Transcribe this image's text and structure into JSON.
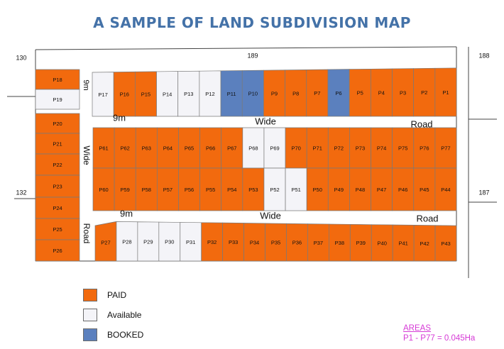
{
  "title": "A SAMPLE OF LAND SUBDIVISION MAP",
  "colors": {
    "paid": "#f26a0e",
    "available": "#f4f4f8",
    "booked": "#5b80be",
    "outline": "#7a7a7a",
    "title": "#4472a8",
    "areas": "#d63ad6"
  },
  "adjacent_parcels": [
    "130",
    "189",
    "188",
    "132",
    "187"
  ],
  "roads": {
    "upper": {
      "width": "9m",
      "word1": "Wide",
      "word2": "Road"
    },
    "lower": {
      "width": "9m",
      "word1": "Wide",
      "word2": "Road"
    },
    "vertical": {
      "width": "9m",
      "word1": "Wide",
      "word2": "Road"
    }
  },
  "plots": {
    "P1": "paid",
    "P2": "paid",
    "P3": "paid",
    "P4": "paid",
    "P5": "paid",
    "P6": "booked",
    "P7": "paid",
    "P8": "paid",
    "P9": "paid",
    "P10": "booked",
    "P11": "booked",
    "P12": "available",
    "P13": "available",
    "P14": "available",
    "P15": "paid",
    "P16": "paid",
    "P17": "available",
    "P18": "paid",
    "P19": "available",
    "P20": "paid",
    "P21": "paid",
    "P22": "paid",
    "P23": "paid",
    "P24": "paid",
    "P25": "paid",
    "P26": "paid",
    "P27": "paid",
    "P28": "available",
    "P29": "available",
    "P30": "available",
    "P31": "available",
    "P32": "paid",
    "P33": "paid",
    "P34": "paid",
    "P35": "paid",
    "P36": "paid",
    "P37": "paid",
    "P38": "paid",
    "P39": "paid",
    "P40": "paid",
    "P41": "paid",
    "P42": "paid",
    "P43": "paid",
    "P44": "paid",
    "P45": "paid",
    "P46": "paid",
    "P47": "paid",
    "P48": "paid",
    "P49": "paid",
    "P50": "paid",
    "P51": "available",
    "P52": "available",
    "P53": "paid",
    "P54": "paid",
    "P55": "paid",
    "P56": "paid",
    "P57": "paid",
    "P58": "paid",
    "P59": "paid",
    "P60": "paid",
    "P61": "paid",
    "P62": "paid",
    "P63": "paid",
    "P64": "paid",
    "P65": "paid",
    "P66": "paid",
    "P67": "paid",
    "P68": "available",
    "P69": "available",
    "P70": "paid",
    "P71": "paid",
    "P72": "paid",
    "P73": "paid",
    "P74": "paid",
    "P75": "paid",
    "P76": "paid",
    "P77": "paid"
  },
  "legend": [
    {
      "status": "paid",
      "label": "PAID"
    },
    {
      "status": "available",
      "label": "Available"
    },
    {
      "status": "booked",
      "label": "BOOKED"
    }
  ],
  "areas": {
    "title": "AREAS",
    "text": "P1 - P77 = 0.045Ha"
  }
}
